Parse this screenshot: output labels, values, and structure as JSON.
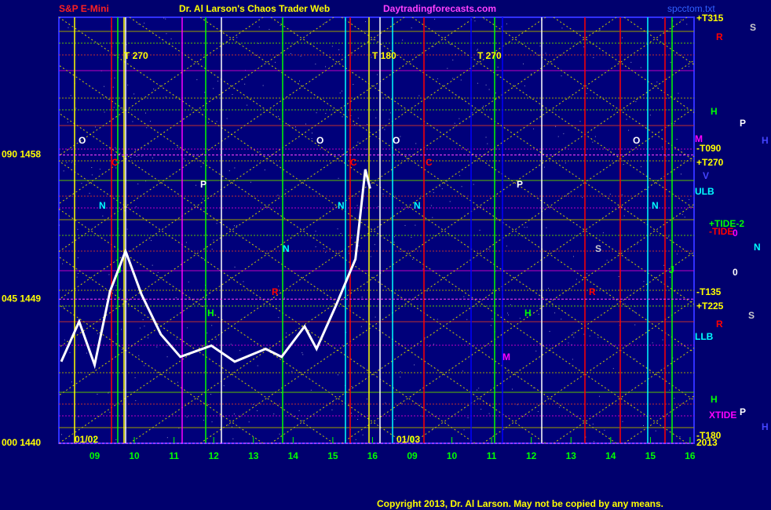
{
  "chart_data": {
    "type": "line",
    "title": "Dr. Al Larson's Chaos Trader Web",
    "symbol": "S&P E-Mini",
    "site": "Daytradingforecasts.com",
    "file": "spcctom.txt",
    "copyright": "Copyright 2013, Dr. Al Larson. May not be copied by any means.",
    "x": [
      0.16,
      0.61,
      1.0,
      1.39,
      1.78,
      2.18,
      2.67,
      3.16,
      3.94,
      4.53,
      5.31,
      5.71,
      6.29,
      6.59,
      7.08,
      7.57,
      7.82,
      7.94
    ],
    "values": [
      1445.1,
      1447.6,
      1444.9,
      1449.5,
      1452.0,
      1449.3,
      1446.8,
      1445.4,
      1446.1,
      1445.1,
      1445.9,
      1445.4,
      1447.3,
      1445.9,
      1448.6,
      1451.5,
      1457.1,
      1455.9
    ],
    "color": "#ffffff",
    "xlim": [
      0.1,
      16.1
    ],
    "xticks": [
      {
        "value": 1,
        "label": "09"
      },
      {
        "value": 2,
        "label": "10"
      },
      {
        "value": 3,
        "label": "11"
      },
      {
        "value": 4,
        "label": "12"
      },
      {
        "value": 5,
        "label": "13"
      },
      {
        "value": 6,
        "label": "14"
      },
      {
        "value": 7,
        "label": "15"
      },
      {
        "value": 8,
        "label": "16"
      },
      {
        "value": 9,
        "label": "09"
      },
      {
        "value": 10,
        "label": "10"
      },
      {
        "value": 11,
        "label": "11"
      },
      {
        "value": 12,
        "label": "12"
      },
      {
        "value": 13,
        "label": "13"
      },
      {
        "value": 14,
        "label": "14"
      },
      {
        "value": 15,
        "label": "15"
      },
      {
        "value": 16,
        "label": "16"
      }
    ],
    "ylim": [
      1440,
      1466.6
    ],
    "yticks": [
      {
        "value": 1440,
        "label": "000 1440"
      },
      {
        "value": 1449,
        "label": "045 1449"
      },
      {
        "value": 1458,
        "label": "090 1458"
      }
    ],
    "grid": true,
    "dates": [
      "01/02",
      "01/03"
    ],
    "right_labels": [
      "+T315",
      "R",
      "S",
      "H",
      "P",
      "M",
      "-T090",
      "H",
      "+T270",
      "V",
      "ULB",
      "+TIDE-2",
      "-TIDE",
      "0",
      "N",
      "0",
      "-T135",
      "+T225",
      "S",
      "R",
      "LLB",
      "H",
      "XTIDE",
      "P",
      "H",
      "-T180",
      "2013"
    ],
    "annotations": [
      "T 270",
      "T 180",
      "T 270",
      "O",
      "O",
      "O",
      "O",
      "C",
      "C",
      "C",
      "N",
      "N",
      "N",
      "N",
      "N",
      "P",
      "P",
      "H",
      "H",
      "J",
      "J",
      "M",
      "R",
      "R",
      "S"
    ]
  }
}
